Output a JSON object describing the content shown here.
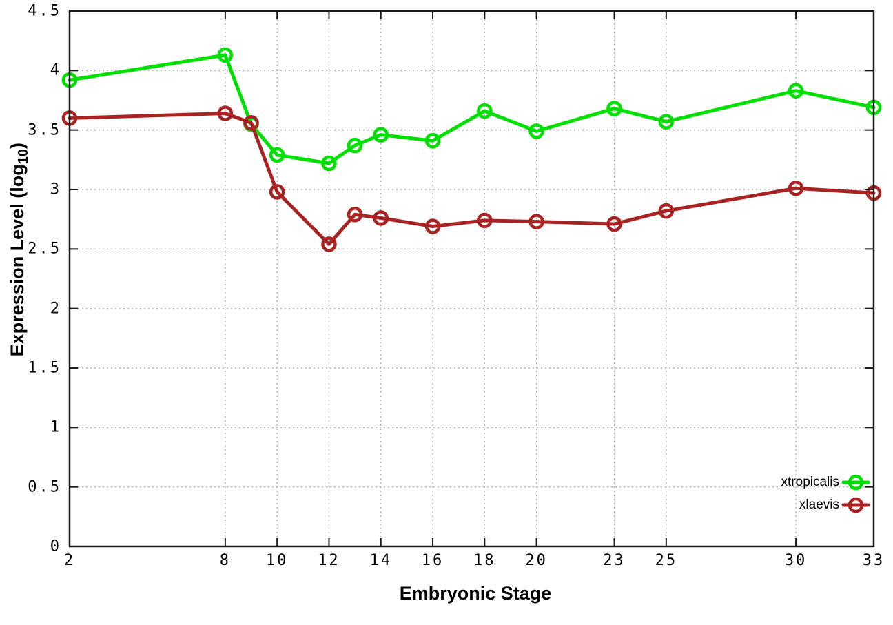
{
  "chart_data": {
    "type": "line",
    "title": "",
    "xlabel": "Embryonic Stage",
    "ylabel_main": "Expression Level (log",
    "ylabel_sub": "10",
    "ylabel_close": ")",
    "xlim": [
      2,
      33
    ],
    "ylim": [
      0,
      4.5
    ],
    "grid": true,
    "grid_style": "dotted-gray",
    "legend_position": "bottom-right-inside",
    "marker": "open-circle",
    "x": [
      2,
      8,
      9,
      10,
      12,
      13,
      14,
      16,
      18,
      20,
      23,
      25,
      30,
      33
    ],
    "xticks": {
      "values": [
        2,
        8,
        10,
        12,
        14,
        16,
        18,
        20,
        23,
        25,
        30,
        33
      ],
      "labels": [
        "2",
        "8",
        "10",
        "12",
        "14",
        "16",
        "18",
        "20",
        "23",
        "25",
        "30",
        "33"
      ]
    },
    "yticks": {
      "values": [
        0,
        0.5,
        1,
        1.5,
        2,
        2.5,
        3,
        3.5,
        4,
        4.5
      ],
      "labels": [
        "0",
        "0.5",
        "1",
        "1.5",
        "2",
        "2.5",
        "3",
        "3.5",
        "4",
        "4.5"
      ]
    },
    "series": [
      {
        "name": "xtropicalis",
        "color": "#00e000",
        "values": [
          3.92,
          4.13,
          3.55,
          3.29,
          3.22,
          3.37,
          3.46,
          3.41,
          3.66,
          3.49,
          3.68,
          3.57,
          3.83,
          3.69
        ]
      },
      {
        "name": "xlaevis",
        "color": "#aa2323",
        "values": [
          3.6,
          3.64,
          3.56,
          2.98,
          2.54,
          2.79,
          2.76,
          2.69,
          2.74,
          2.73,
          2.71,
          2.82,
          3.01,
          2.97
        ]
      }
    ],
    "colors": {
      "border": "#1a1a1a",
      "grid": "#b5b5b5",
      "text": "#000000",
      "background": "#ffffff"
    }
  }
}
